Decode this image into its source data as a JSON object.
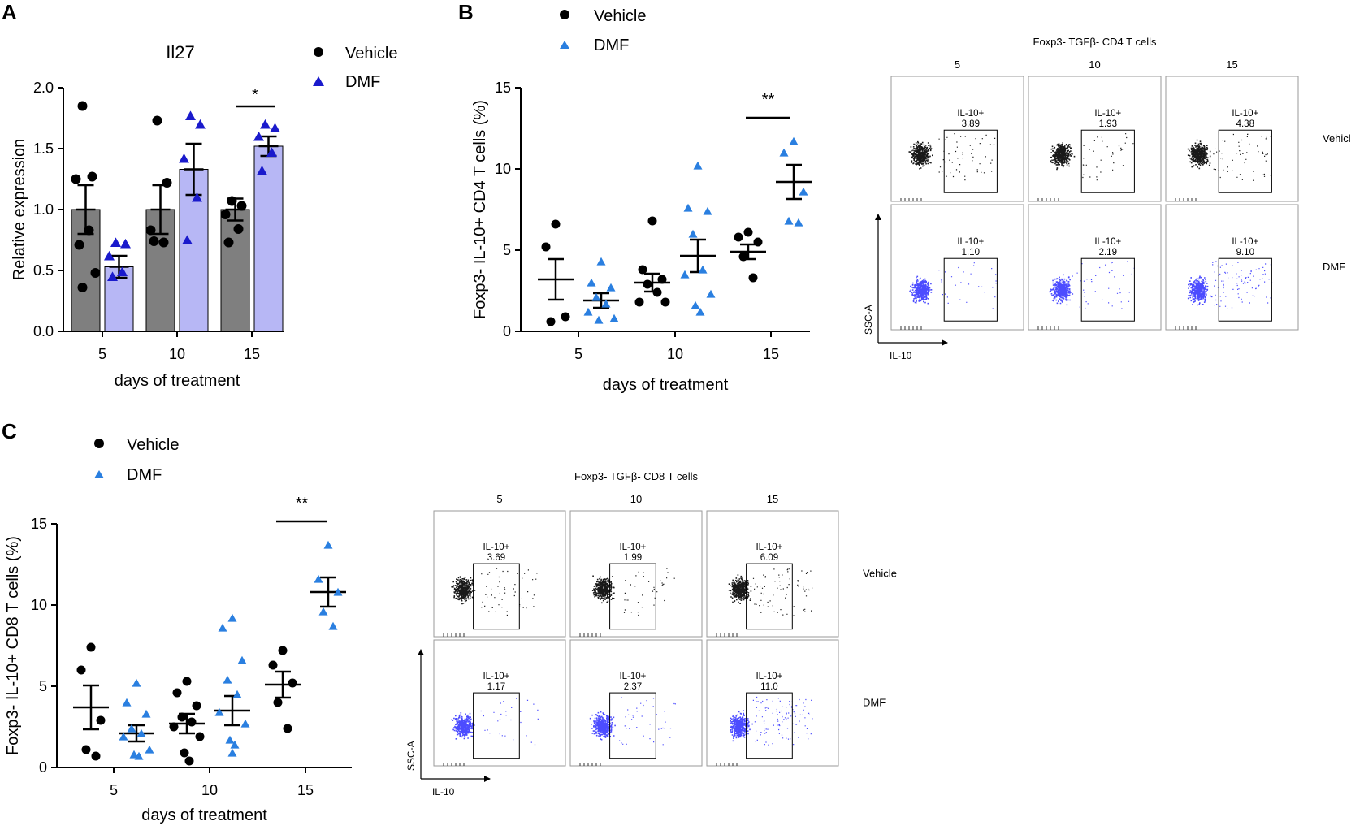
{
  "colors": {
    "vehicle": "#000000",
    "dmf_dark": "#1a1acc",
    "dmf_light": "#2a7fe0",
    "bar_vehicle": "#7f7f7f",
    "bar_dmf": "#b7b7f5",
    "flow_blue": "#1f1fff"
  },
  "chart_data": [
    {
      "type": "bar",
      "panel": "A",
      "title": "Il27",
      "xlabel": "days of treatment",
      "ylabel": "Relative expression",
      "categories": [
        "5",
        "10",
        "15"
      ],
      "ylim": [
        0,
        2.0
      ],
      "yticks": [
        "0.0",
        "0.5",
        "1.0",
        "1.5",
        "2.0"
      ],
      "legend": [
        "Vehicle",
        "DMF"
      ],
      "series": [
        {
          "name": "Vehicle",
          "values": [
            1.0,
            1.0,
            1.0
          ],
          "sem": [
            0.2,
            0.2,
            0.09
          ],
          "points": [
            [
              1.85,
              1.27,
              1.25,
              0.83,
              0.71,
              0.48,
              0.36
            ],
            [
              1.73,
              1.22,
              0.83,
              0.73,
              0.74
            ],
            [
              1.07,
              1.03,
              0.96,
              0.84,
              0.73
            ]
          ]
        },
        {
          "name": "DMF",
          "values": [
            0.53,
            1.33,
            1.52
          ],
          "sem": [
            0.09,
            0.21,
            0.08
          ],
          "points": [
            [
              0.73,
              0.72,
              0.62,
              0.49,
              0.45
            ],
            [
              1.77,
              1.7,
              1.42,
              1.1,
              0.75
            ],
            [
              1.7,
              1.67,
              1.6,
              1.47,
              1.32
            ]
          ]
        }
      ],
      "significance": [
        {
          "category": "15",
          "label": "*"
        }
      ]
    },
    {
      "type": "scatter",
      "panel": "B",
      "xlabel": "days of treatment",
      "ylabel": "Foxp3- IL-10+ CD4 T cells (%)",
      "categories": [
        "5",
        "10",
        "15"
      ],
      "ylim": [
        0,
        15
      ],
      "yticks": [
        "0",
        "5",
        "10",
        "15"
      ],
      "legend": [
        "Vehicle",
        "DMF"
      ],
      "series": [
        {
          "name": "Vehicle",
          "means": [
            3.2,
            3.0,
            4.9
          ],
          "sem": [
            1.25,
            0.55,
            0.45
          ],
          "points": [
            [
              6.6,
              5.2,
              0.9,
              0.6
            ],
            [
              6.8,
              3.8,
              3.2,
              2.9,
              2.4,
              1.8,
              1.8
            ],
            [
              6.1,
              5.8,
              5.5,
              4.6,
              3.3
            ]
          ]
        },
        {
          "name": "DMF",
          "means": [
            1.9,
            4.65,
            9.2
          ],
          "sem": [
            0.45,
            1.0,
            1.05
          ],
          "points": [
            [
              4.3,
              3.0,
              2.7,
              2.1,
              1.7,
              1.2,
              0.8,
              0.7
            ],
            [
              10.2,
              7.6,
              7.4,
              6.0,
              3.8,
              3.5,
              2.3,
              1.6,
              1.2
            ],
            [
              11.7,
              11.0,
              8.6,
              6.8,
              6.7
            ]
          ]
        }
      ],
      "significance": [
        {
          "category": "15",
          "label": "**"
        }
      ]
    },
    {
      "type": "scatter",
      "panel": "C",
      "xlabel": "days of treatment",
      "ylabel": "Foxp3- IL-10+ CD8 T cells (%)",
      "categories": [
        "5",
        "10",
        "15"
      ],
      "ylim": [
        0,
        15
      ],
      "yticks": [
        "0",
        "5",
        "10",
        "15"
      ],
      "legend": [
        "Vehicle",
        "DMF"
      ],
      "series": [
        {
          "name": "Vehicle",
          "means": [
            3.7,
            2.7,
            5.1
          ],
          "sem": [
            1.35,
            0.6,
            0.8
          ],
          "points": [
            [
              7.4,
              6.0,
              2.9,
              1.1,
              0.7
            ],
            [
              5.3,
              4.6,
              3.8,
              3.1,
              2.8,
              2.5,
              1.9,
              0.9,
              0.4
            ],
            [
              7.2,
              6.3,
              5.2,
              4.0,
              2.4
            ]
          ]
        },
        {
          "name": "DMF",
          "means": [
            2.1,
            3.5,
            10.8
          ],
          "sem": [
            0.5,
            0.9,
            0.9
          ],
          "points": [
            [
              5.2,
              4.0,
              3.3,
              2.4,
              2.1,
              1.9,
              1.1,
              0.8,
              0.7
            ],
            [
              9.2,
              8.6,
              6.6,
              5.4,
              4.5,
              3.4,
              2.7,
              1.7,
              1.4,
              0.9
            ],
            [
              13.7,
              11.6,
              10.8,
              9.6,
              8.7
            ]
          ]
        }
      ],
      "significance": [
        {
          "category": "15",
          "label": "**"
        }
      ]
    }
  ],
  "panel_labels": {
    "a": "A",
    "b": "B",
    "c": "C"
  },
  "legend": {
    "vehicle": "Vehicle",
    "dmf": "DMF"
  },
  "flow": {
    "cd4": {
      "title": "Foxp3- TGFβ- CD4 T cells",
      "columns": [
        "5",
        "10",
        "15"
      ],
      "rows": [
        "Vehicle",
        "DMF"
      ],
      "gate_label": "IL-10+",
      "values": {
        "vehicle": [
          "3.89",
          "1.93",
          "4.38"
        ],
        "dmf": [
          "1.10",
          "2.19",
          "9.10"
        ]
      },
      "yaxis": "SSC-A",
      "xaxis": "IL-10"
    },
    "cd8": {
      "title": "Foxp3- TGFβ- CD8 T cells",
      "columns": [
        "5",
        "10",
        "15"
      ],
      "rows": [
        "Vehicle",
        "DMF"
      ],
      "gate_label": "IL-10+",
      "values": {
        "vehicle": [
          "3.69",
          "1.99",
          "6.09"
        ],
        "dmf": [
          "1.17",
          "2.37",
          "11.0"
        ]
      },
      "yaxis": "SSC-A",
      "xaxis": "IL-10"
    }
  }
}
